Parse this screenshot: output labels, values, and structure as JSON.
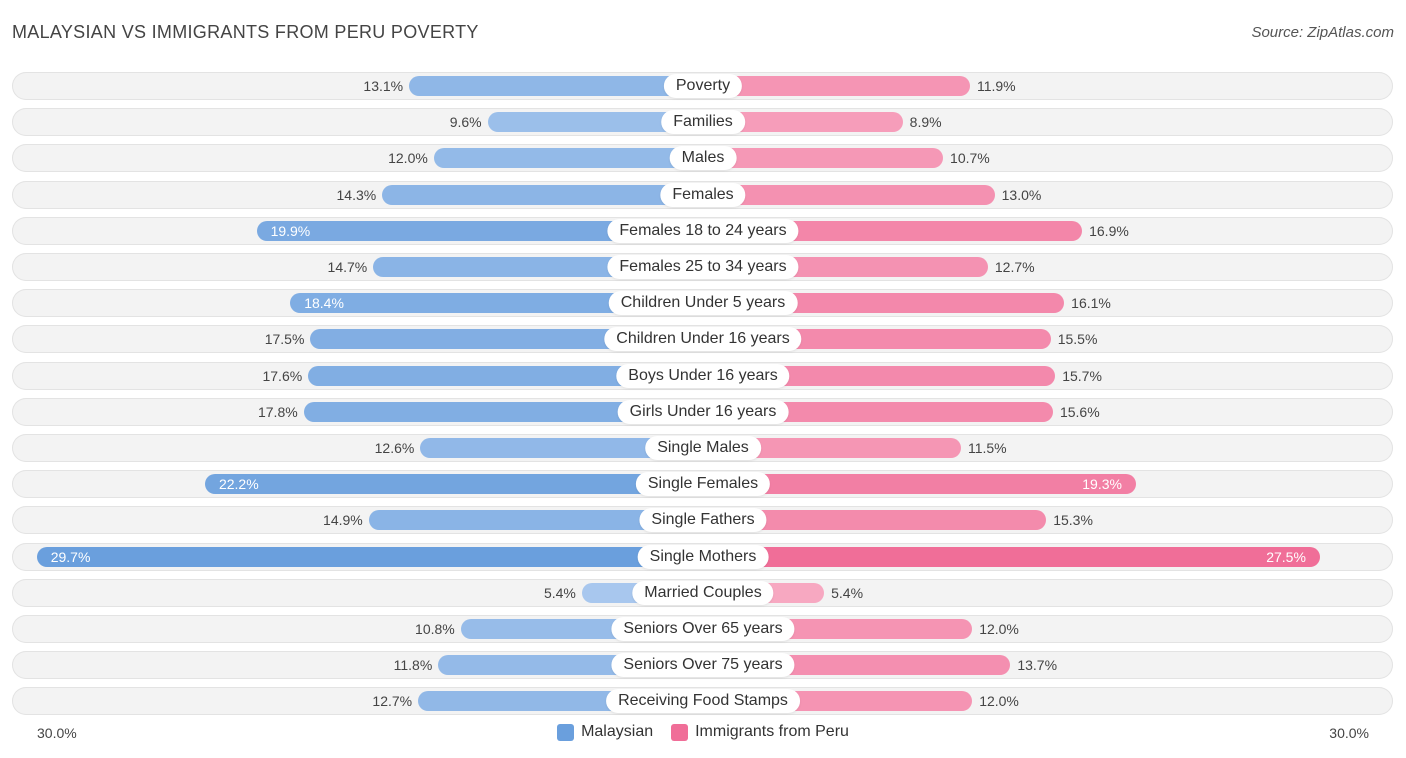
{
  "header": {
    "title": "MALAYSIAN VS IMMIGRANTS FROM PERU POVERTY",
    "source": "Source: ZipAtlas.com"
  },
  "colors": {
    "left_strong": "#6a9fdd",
    "left_light": "#a9c8ee",
    "right_strong": "#f06e98",
    "right_light": "#f7a9c2"
  },
  "chart_data": {
    "type": "bar",
    "orientation": "horizontal-diverging",
    "title": "MALAYSIAN VS IMMIGRANTS FROM PERU POVERTY",
    "xlim": [
      -30,
      30
    ],
    "axis_min_label": "30.0%",
    "axis_max_label": "30.0%",
    "categories": [
      "Poverty",
      "Families",
      "Males",
      "Females",
      "Females 18 to 24 years",
      "Females 25 to 34 years",
      "Children Under 5 years",
      "Children Under 16 years",
      "Boys Under 16 years",
      "Girls Under 16 years",
      "Single Males",
      "Single Females",
      "Single Fathers",
      "Single Mothers",
      "Married Couples",
      "Seniors Over 65 years",
      "Seniors Over 75 years",
      "Receiving Food Stamps"
    ],
    "series": [
      {
        "name": "Malaysian",
        "values": [
          13.1,
          9.6,
          12.0,
          14.3,
          19.9,
          14.7,
          18.4,
          17.5,
          17.6,
          17.8,
          12.6,
          22.2,
          14.9,
          29.7,
          5.4,
          10.8,
          11.8,
          12.7
        ],
        "labels": [
          "13.1%",
          "9.6%",
          "12.0%",
          "14.3%",
          "19.9%",
          "14.7%",
          "18.4%",
          "17.5%",
          "17.6%",
          "17.8%",
          "12.6%",
          "22.2%",
          "14.9%",
          "29.7%",
          "5.4%",
          "10.8%",
          "11.8%",
          "12.7%"
        ]
      },
      {
        "name": "Immigrants from Peru",
        "values": [
          11.9,
          8.9,
          10.7,
          13.0,
          16.9,
          12.7,
          16.1,
          15.5,
          15.7,
          15.6,
          11.5,
          19.3,
          15.3,
          27.5,
          5.4,
          12.0,
          13.7,
          12.0
        ],
        "labels": [
          "11.9%",
          "8.9%",
          "10.7%",
          "13.0%",
          "16.9%",
          "12.7%",
          "16.1%",
          "15.5%",
          "15.7%",
          "15.6%",
          "11.5%",
          "19.3%",
          "15.3%",
          "27.5%",
          "5.4%",
          "12.0%",
          "13.7%",
          "12.0%"
        ]
      }
    ],
    "legend": [
      "Malaysian",
      "Immigrants from Peru"
    ],
    "legend_position": "bottom-center"
  }
}
